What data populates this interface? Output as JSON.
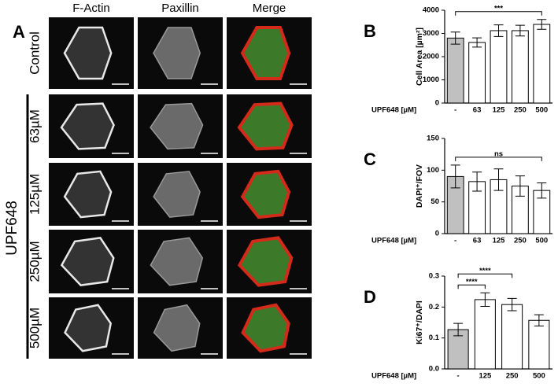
{
  "panel_a": {
    "letter": "A",
    "columns": [
      "F-Actin",
      "Paxillin",
      "Merge"
    ],
    "rows": [
      "Control",
      "63µM",
      "125µM",
      "250µM",
      "500µM"
    ],
    "group_label": "UPF648"
  },
  "chart_data": [
    {
      "type": "bar",
      "panel": "B",
      "ylabel": "Cell Area [µm²]",
      "xlabel": "UPF648 [µM]",
      "categories": [
        "-",
        "63",
        "125",
        "250",
        "500"
      ],
      "values": [
        2800,
        2610,
        3120,
        3120,
        3390
      ],
      "errors": [
        260,
        200,
        250,
        230,
        210
      ],
      "colors": [
        "#c0c0c0",
        "#ffffff",
        "#ffffff",
        "#ffffff",
        "#ffffff"
      ],
      "ylim": [
        0,
        4000
      ],
      "yticks": [
        0,
        1000,
        2000,
        3000,
        4000
      ],
      "annotations": [
        {
          "text": "***",
          "from": "-",
          "to": "500"
        }
      ]
    },
    {
      "type": "bar",
      "panel": "C",
      "ylabel": "DAPI⁺/FOV",
      "xlabel": "UPF648 [µM]",
      "categories": [
        "-",
        "63",
        "125",
        "250",
        "500"
      ],
      "values": [
        90,
        82,
        85,
        75,
        68
      ],
      "errors": [
        18,
        15,
        17,
        16,
        12
      ],
      "colors": [
        "#c0c0c0",
        "#ffffff",
        "#ffffff",
        "#ffffff",
        "#ffffff"
      ],
      "ylim": [
        0,
        150
      ],
      "yticks": [
        0,
        50,
        100,
        150
      ],
      "annotations": [
        {
          "text": "ns",
          "from": "-",
          "to": "500"
        }
      ]
    },
    {
      "type": "bar",
      "panel": "D",
      "ylabel": "Ki67⁺/DAPI",
      "xlabel": "UPF648 [µM]",
      "categories": [
        "-",
        "125",
        "250",
        "500"
      ],
      "values": [
        0.127,
        0.224,
        0.208,
        0.157
      ],
      "errors": [
        0.02,
        0.022,
        0.02,
        0.018
      ],
      "colors": [
        "#c0c0c0",
        "#ffffff",
        "#ffffff",
        "#ffffff"
      ],
      "ylim": [
        0,
        0.3
      ],
      "yticks": [
        {
          "value": 0,
          "label": "0.0"
        },
        0.1,
        0.2,
        0.3
      ],
      "annotations": [
        {
          "text": "****",
          "from": "-",
          "to": "125"
        },
        {
          "text": "****",
          "from": "-",
          "to": "250"
        }
      ]
    }
  ]
}
